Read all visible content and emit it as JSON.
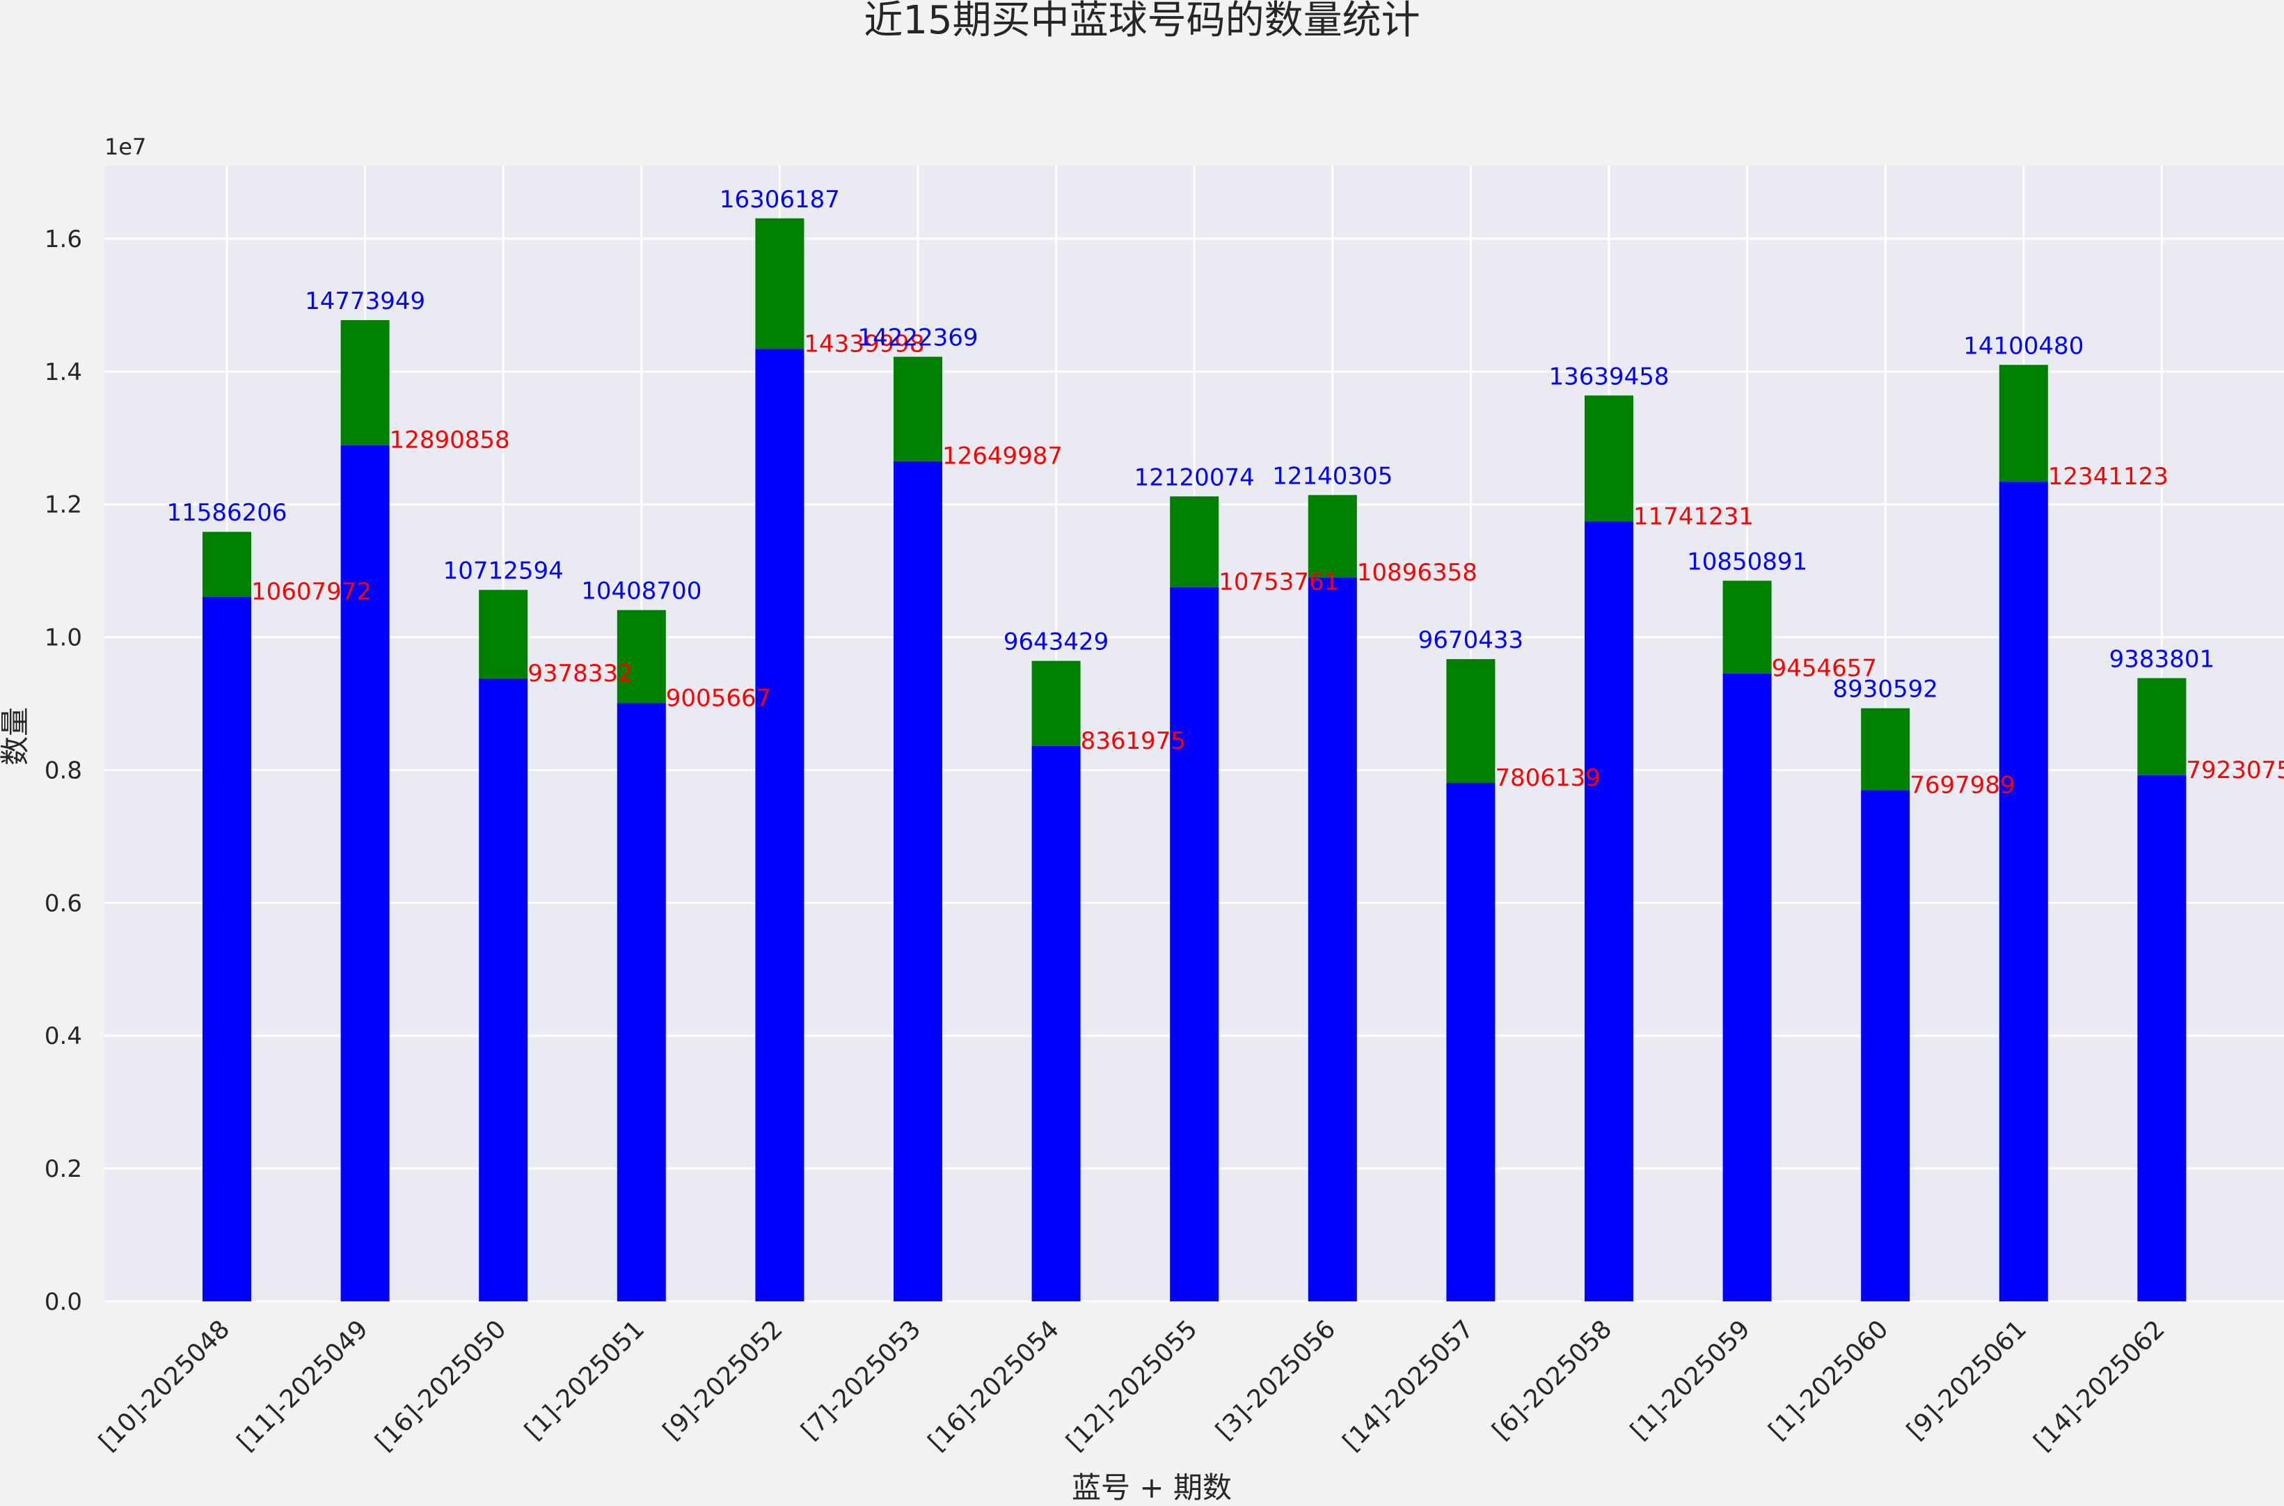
{
  "chart_data": {
    "type": "bar",
    "stacked": true,
    "title": "近15期买中蓝球号码的数量统计",
    "xlabel": "蓝号 + 期数",
    "ylabel": "数量",
    "y_offset_text": "1e7",
    "ylim": [
      0,
      17100000
    ],
    "yticks": [
      0,
      2000000,
      4000000,
      6000000,
      8000000,
      10000000,
      12000000,
      14000000,
      16000000
    ],
    "ytick_labels": [
      "0.0",
      "0.2",
      "0.4",
      "0.6",
      "0.8",
      "1.0",
      "1.2",
      "1.4",
      "1.6"
    ],
    "grid": true,
    "categories": [
      "[10]-2025048",
      "[11]-2025049",
      "[16]-2025050",
      "[1]-2025051",
      "[9]-2025052",
      "[7]-2025053",
      "[16]-2025054",
      "[12]-2025055",
      "[3]-2025056",
      "[14]-2025057",
      "[6]-2025058",
      "[1]-2025059",
      "[1]-2025060",
      "[9]-2025061",
      "[14]-2025062"
    ],
    "bottom_values": [
      10607972,
      12890858,
      9378332,
      9005667,
      14339998,
      12649987,
      8361975,
      10753761,
      10896358,
      7806139,
      11741231,
      9454657,
      7697989,
      12341123,
      7923075
    ],
    "total_values": [
      11586206,
      14773949,
      10712594,
      10408700,
      16306187,
      14222369,
      9643429,
      12120074,
      12140305,
      9670433,
      13639458,
      10850891,
      8930592,
      14100480,
      9383801
    ],
    "colors": {
      "bottom_bar": "#0000ff",
      "top_bar": "#008000",
      "total_label": "#0000ff",
      "bottom_label": "#ff0000",
      "plot_bg": "#eaeaf2",
      "page_bg": "#f2f2f2",
      "grid": "#ffffff",
      "text": "#262626"
    }
  }
}
